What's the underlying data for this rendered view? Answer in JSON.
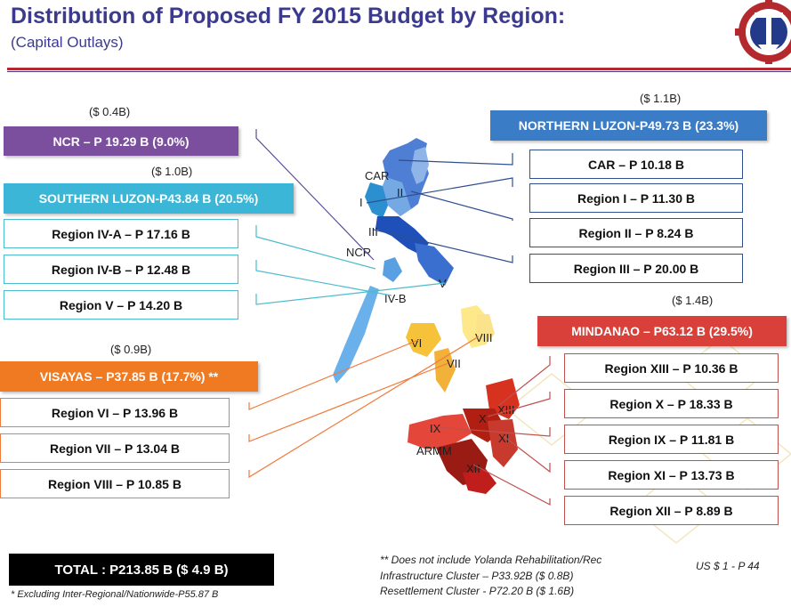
{
  "title": "Distribution of Proposed FY 2015 Budget by Region:",
  "subtitle": "(Capital Outlays)",
  "ncr": {
    "usd": "($ 0.4B)",
    "label": "NCR – P 19.29 B (9.0%)"
  },
  "southern_luzon": {
    "usd": "($ 1.0B)",
    "label": "SOUTHERN LUZON-P43.84 B (20.5%)",
    "regions": [
      "Region IV-A – P 17.16 B",
      "Region IV-B – P 12.48 B",
      "Region V – P 14.20 B"
    ]
  },
  "visayas": {
    "usd": "($ 0.9B)",
    "label": "VISAYAS – P37.85 B (17.7%) **",
    "regions": [
      "Region VI – P 13.96 B",
      "Region  VII – P 13.04 B",
      "Region  VIII – P 10.85 B"
    ]
  },
  "northern_luzon": {
    "usd": "($ 1.1B)",
    "label": "NORTHERN LUZON-P49.73 B (23.3%)",
    "regions": [
      "CAR – P 10.18 B",
      "Region I – P 11.30 B",
      "Region II – P 8.24 B",
      "Region III – P 20.00 B"
    ]
  },
  "mindanao": {
    "usd": "($ 1.4B)",
    "label": "MINDANAO – P63.12 B (29.5%)",
    "regions": [
      "Region XIII – P 10.36 B",
      "Region X – P 18.33 B",
      "Region IX – P 11.81 B",
      "Region XI – P 13.73 B",
      "Region XII – P 8.89 B"
    ]
  },
  "map_labels": {
    "car": "CAR",
    "i": "I",
    "ii": "II",
    "iii": "III",
    "ncr": "NCR",
    "ivb": "IV-B",
    "v": "V",
    "vi": "VI",
    "vii": "VII",
    "viii": "VIII",
    "xiii": "XIII",
    "x": "X",
    "ix": "IX",
    "xi": "XI",
    "armm": "ARMM",
    "xii": "XII"
  },
  "total": "TOTAL :  P213.85 B ($ 4.9 B)",
  "footnote": "* Excluding Inter-Regional/Nationwide-P55.87 B",
  "note_lines": [
    "** Does not include Yolanda Rehabilitation/Rec",
    "Infrastructure Cluster – P33.92B ($ 0.8B)",
    "Resettlement  Cluster -  P72.20 B ($ 1.6B)"
  ],
  "exchange_rate": "US $  1 - P 44",
  "colors": {
    "title": "#3b3a8f",
    "ncr": "#7b4f9d",
    "southern_luzon": "#3cb6d6",
    "visayas": "#f07a22",
    "northern_luzon": "#3a7cc6",
    "mindanao": "#d9403a"
  }
}
